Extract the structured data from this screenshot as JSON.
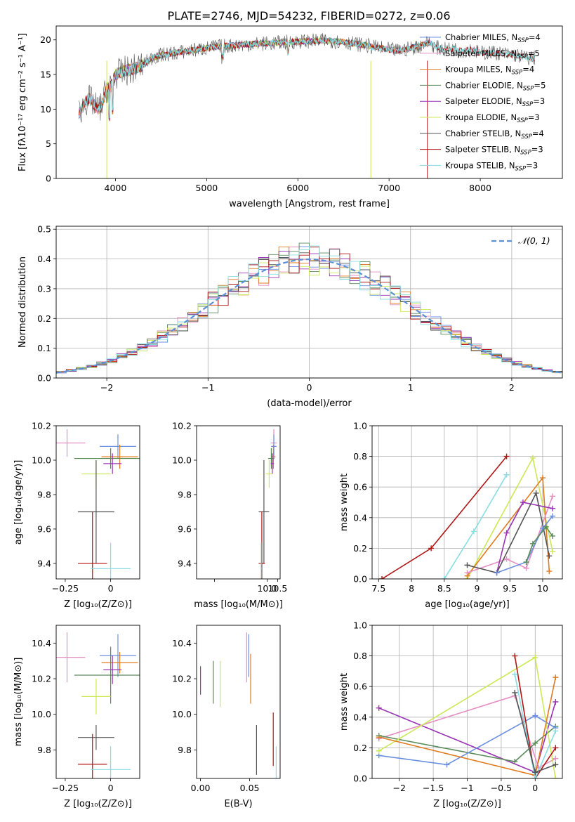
{
  "figure": {
    "title": "PLATE=2746, MJD=54232, FIBERID=0272, z=0.06"
  },
  "colors": {
    "chabrier_miles": "#6a8fe0",
    "salpeter_miles": "#e58fc2",
    "kroupa_miles": "#e07b1f",
    "chabrier_elodie": "#5a8c5a",
    "salpeter_elodie": "#9a33b5",
    "kroupa_elodie": "#cbe856",
    "chabrier_stelib": "#555555",
    "salpeter_stelib": "#b01515",
    "kroupa_stelib": "#88dde0",
    "normal": "#5b8fd6"
  },
  "chart_data": [
    {
      "id": "spectrum",
      "type": "line",
      "xlabel": "wavelength [Angstrom, rest frame]",
      "ylabel": "Flux [fλ10⁻¹⁷ erg cm⁻² s⁻¹ A⁻¹]",
      "xlim": [
        3350,
        8900
      ],
      "ylim": [
        0,
        22
      ],
      "xticks": [
        4000,
        5000,
        6000,
        7000,
        8000
      ],
      "yticks": [
        0,
        5,
        10,
        15,
        20
      ],
      "legend_position": "right",
      "spectrum_shape": {
        "x": [
          3600,
          3650,
          3700,
          3750,
          3800,
          3850,
          3900,
          3950,
          4000,
          4100,
          4200,
          4300,
          4400,
          4500,
          4700,
          4900,
          5100,
          5300,
          5500,
          5700,
          5900,
          6100,
          6300,
          6500,
          6700,
          6900,
          7100,
          7300,
          7450,
          7500,
          7600,
          7700,
          7800,
          7900,
          8000,
          8100,
          8200,
          8300,
          8400,
          8500,
          8600
        ],
        "y": [
          9.5,
          10.5,
          11.5,
          11.0,
          10.0,
          10.5,
          13.0,
          13.2,
          15.0,
          15.5,
          15.8,
          16.4,
          17.4,
          17.8,
          18.2,
          18.6,
          19.0,
          19.2,
          19.4,
          19.5,
          19.7,
          19.8,
          19.9,
          19.7,
          19.3,
          18.8,
          18.4,
          19.0,
          19.7,
          19.0,
          18.6,
          18.7,
          18.4,
          18.6,
          18.1,
          18.2,
          18.1,
          17.9,
          17.8,
          17.4,
          17.4
        ]
      },
      "series": [
        {
          "name": "Chabrier MILES",
          "nssp": "4",
          "color_key": "chabrier_miles",
          "x_range": [
            3600,
            7470
          ]
        },
        {
          "name": "Salpeter MILES",
          "nssp": "5",
          "color_key": "salpeter_miles",
          "x_range": [
            3600,
            7470
          ]
        },
        {
          "name": "Kroupa MILES",
          "nssp": "4",
          "color_key": "kroupa_miles",
          "x_range": [
            3600,
            7470
          ]
        },
        {
          "name": "Chabrier ELODIE",
          "nssp": "5",
          "color_key": "chabrier_elodie",
          "x_range": [
            3900,
            6800
          ]
        },
        {
          "name": "Salpeter ELODIE",
          "nssp": "3",
          "color_key": "salpeter_elodie",
          "x_range": [
            3900,
            6800
          ]
        },
        {
          "name": "Kroupa ELODIE",
          "nssp": "3",
          "color_key": "kroupa_elodie",
          "x_range": [
            3900,
            6800
          ]
        },
        {
          "name": "Chabrier STELIB",
          "nssp": "4",
          "color_key": "chabrier_stelib",
          "x_range": [
            3600,
            8600
          ]
        },
        {
          "name": "Salpeter STELIB",
          "nssp": "3",
          "color_key": "salpeter_stelib",
          "x_range": [
            3600,
            8600
          ]
        },
        {
          "name": "Kroupa STELIB",
          "nssp": "3",
          "color_key": "kroupa_stelib",
          "x_range": [
            3600,
            8600
          ]
        }
      ]
    },
    {
      "id": "residuals",
      "type": "histogram",
      "xlabel": "(data-model)/error",
      "ylabel": "Normed distribution",
      "xlim": [
        -2.5,
        2.5
      ],
      "ylim": [
        0,
        0.51
      ],
      "xticks": [
        -2,
        -1,
        0,
        1,
        2
      ],
      "yticks": [
        0.0,
        0.1,
        0.2,
        0.3,
        0.4,
        0.5
      ],
      "grid": true,
      "legend_position": "top-right",
      "reference_curve": {
        "label": "𝒩(0, 1)",
        "color_key": "normal",
        "style": "dashed"
      },
      "bin_width": 0.1
    },
    {
      "id": "age_vs_Z",
      "type": "errorbar",
      "xlabel": "Z [log₁₀(Z/Z⊙)]",
      "ylabel": "age  [log₁₀(age/yr)]",
      "xlim": [
        -0.3,
        0.16
      ],
      "ylim": [
        9.31,
        10.2
      ],
      "xticks": [
        -0.25,
        0.0
      ],
      "yticks": [
        9.4,
        9.6,
        9.8,
        10.0,
        10.2
      ],
      "points": [
        {
          "color_key": "salpeter_miles",
          "x": -0.24,
          "xerr": 0.1,
          "y": 10.1,
          "yerr": 0.08
        },
        {
          "color_key": "chabrier_miles",
          "x": 0.04,
          "xerr": 0.1,
          "y": 10.08,
          "yerr": 0.07
        },
        {
          "color_key": "kroupa_miles",
          "x": 0.05,
          "xerr": 0.1,
          "y": 10.02,
          "yerr": 0.07
        },
        {
          "color_key": "chabrier_elodie",
          "x": 0.0,
          "xerr": 0.2,
          "y": 10.01,
          "yerr": 0.06
        },
        {
          "color_key": "salpeter_elodie",
          "x": 0.01,
          "xerr": 0.05,
          "y": 9.98,
          "yerr": 0.06
        },
        {
          "color_key": "kroupa_elodie",
          "x": -0.08,
          "xerr": 0.08,
          "y": 9.92,
          "yerr": 0.08
        },
        {
          "color_key": "chabrier_stelib",
          "x": -0.08,
          "xerr": 0.1,
          "y": 9.7,
          "yerr": 0.3
        },
        {
          "color_key": "salpeter_stelib",
          "x": -0.1,
          "xerr": 0.08,
          "y": 9.4,
          "yerr": 0.3
        },
        {
          "color_key": "kroupa_stelib",
          "x": 0.0,
          "xerr": 0.11,
          "y": 9.37,
          "yerr": 0.15
        }
      ]
    },
    {
      "id": "age_vs_mass",
      "type": "errorbar",
      "xlabel": "mass [log₁₀(M/M⊙)]",
      "ylabel": "",
      "xlim": [
        6.65,
        10.62
      ],
      "ylim": [
        9.31,
        10.2
      ],
      "xticks": [
        7.5,
        10.0,
        10.5
      ],
      "xticklabels": [
        "",
        "10.0",
        "10.5"
      ],
      "yticks": [
        9.4,
        9.6,
        9.8,
        10.0,
        10.2
      ],
      "points": [
        {
          "color_key": "salpeter_miles",
          "x": 10.32,
          "xerr": 0.15,
          "y": 10.1,
          "yerr": 0.08
        },
        {
          "color_key": "chabrier_miles",
          "x": 10.32,
          "xerr": 0.13,
          "y": 10.08,
          "yerr": 0.07
        },
        {
          "color_key": "kroupa_miles",
          "x": 10.3,
          "xerr": 0.1,
          "y": 10.02,
          "yerr": 0.07
        },
        {
          "color_key": "chabrier_elodie",
          "x": 10.2,
          "xerr": 0.15,
          "y": 10.01,
          "yerr": 0.06
        },
        {
          "color_key": "salpeter_elodie",
          "x": 10.25,
          "xerr": 0.08,
          "y": 9.98,
          "yerr": 0.06
        },
        {
          "color_key": "kroupa_elodie",
          "x": 10.1,
          "xerr": 0.15,
          "y": 9.92,
          "yerr": 0.08
        },
        {
          "color_key": "chabrier_stelib",
          "x": 9.85,
          "xerr": 0.25,
          "y": 9.7,
          "yerr": 0.3
        },
        {
          "color_key": "salpeter_stelib",
          "x": 9.75,
          "xerr": 0.15,
          "y": 9.4,
          "yerr": 0.3
        },
        {
          "color_key": "kroupa_stelib",
          "x": 9.72,
          "xerr": 0.03,
          "y": 9.37,
          "yerr": 0.15
        }
      ]
    },
    {
      "id": "weight_vs_age",
      "type": "line",
      "xlabel": "age  [log₁₀(age/yr)]",
      "ylabel": "mass weight",
      "xlim": [
        7.4,
        10.3
      ],
      "ylim": [
        0,
        1.0
      ],
      "xticks": [
        7.5,
        8.0,
        8.5,
        9.0,
        9.5,
        10.0
      ],
      "yticks": [
        0.0,
        0.2,
        0.4,
        0.6,
        0.8,
        1.0
      ],
      "grid": true,
      "series": [
        {
          "color_key": "salpeter_stelib",
          "x": [
            7.55,
            8.3,
            9.45
          ],
          "y": [
            0.0,
            0.2,
            0.8
          ]
        },
        {
          "color_key": "kroupa_stelib",
          "x": [
            8.5,
            8.95,
            9.45
          ],
          "y": [
            0.0,
            0.31,
            0.68
          ]
        },
        {
          "color_key": "kroupa_elodie",
          "x": [
            8.85,
            9.85,
            10.15
          ],
          "y": [
            0.0,
            0.79,
            0.18
          ]
        },
        {
          "color_key": "kroupa_miles",
          "x": [
            8.85,
            10.0,
            10.1
          ],
          "y": [
            0.02,
            0.66,
            0.05
          ]
        },
        {
          "color_key": "salpeter_miles",
          "x": [
            8.85,
            9.45,
            9.75,
            10.15
          ],
          "y": [
            0.04,
            0.13,
            0.07,
            0.54
          ]
        },
        {
          "color_key": "salpeter_elodie",
          "x": [
            9.3,
            9.45,
            9.7,
            10.15
          ],
          "y": [
            0.04,
            0.3,
            0.5,
            0.46
          ]
        },
        {
          "color_key": "chabrier_stelib",
          "x": [
            8.85,
            9.3,
            9.9,
            10.1
          ],
          "y": [
            0.09,
            0.04,
            0.56,
            0.15
          ]
        },
        {
          "color_key": "chabrier_miles",
          "x": [
            9.3,
            9.75,
            10.0,
            10.15
          ],
          "y": [
            0.04,
            0.11,
            0.33,
            0.41
          ]
        },
        {
          "color_key": "chabrier_elodie",
          "x": [
            9.75,
            9.85,
            10.05,
            10.15
          ],
          "y": [
            0.11,
            0.23,
            0.34,
            0.28
          ]
        }
      ]
    },
    {
      "id": "mass_vs_Z",
      "type": "errorbar",
      "xlabel": "Z [log₁₀(Z/Z⊙)]",
      "ylabel": "mass [log₁₀(M/M⊙)]",
      "xlim": [
        -0.3,
        0.16
      ],
      "ylim": [
        9.64,
        10.5
      ],
      "xticks": [
        -0.25,
        0.0
      ],
      "yticks": [
        9.8,
        10.0,
        10.2,
        10.4
      ],
      "points": [
        {
          "color_key": "salpeter_miles",
          "x": -0.24,
          "xerr": 0.1,
          "y": 10.32,
          "yerr": 0.14
        },
        {
          "color_key": "chabrier_miles",
          "x": 0.04,
          "xerr": 0.1,
          "y": 10.33,
          "yerr": 0.12
        },
        {
          "color_key": "kroupa_miles",
          "x": 0.05,
          "xerr": 0.1,
          "y": 10.29,
          "yerr": 0.06
        },
        {
          "color_key": "chabrier_elodie",
          "x": 0.0,
          "xerr": 0.2,
          "y": 10.22,
          "yerr": 0.16
        },
        {
          "color_key": "salpeter_elodie",
          "x": 0.01,
          "xerr": 0.05,
          "y": 10.25,
          "yerr": 0.08
        },
        {
          "color_key": "kroupa_elodie",
          "x": -0.08,
          "xerr": 0.08,
          "y": 10.1,
          "yerr": 0.1
        },
        {
          "color_key": "chabrier_stelib",
          "x": -0.08,
          "xerr": 0.1,
          "y": 9.87,
          "yerr": 0.07
        },
        {
          "color_key": "salpeter_stelib",
          "x": -0.1,
          "xerr": 0.08,
          "y": 9.72,
          "yerr": 0.17
        },
        {
          "color_key": "kroupa_stelib",
          "x": 0.0,
          "xerr": 0.11,
          "y": 9.69,
          "yerr": 0.13
        }
      ]
    },
    {
      "id": "mass_vs_ebv",
      "type": "errorbar",
      "xlabel": "E(B-V)",
      "ylabel": "",
      "xlim": [
        -0.004,
        0.081
      ],
      "ylim": [
        9.64,
        10.5
      ],
      "xticks": [
        0.0,
        0.05
      ],
      "xticklabels": [
        "0.00",
        "0.05"
      ],
      "yticks": [
        9.8,
        10.0,
        10.2,
        10.4
      ],
      "points": [
        {
          "color_key": "salpeter_miles",
          "x": 0.047,
          "xerr": 0,
          "y": 10.32,
          "yerr": 0.14
        },
        {
          "color_key": "chabrier_miles",
          "x": 0.049,
          "xerr": 0,
          "y": 10.33,
          "yerr": 0.12
        },
        {
          "color_key": "kroupa_miles",
          "x": 0.051,
          "xerr": 0,
          "y": 10.2,
          "yerr": 0.14
        },
        {
          "color_key": "chabrier_elodie",
          "x": 0.013,
          "xerr": 0,
          "y": 10.18,
          "yerr": 0.12
        },
        {
          "color_key": "salpeter_elodie",
          "x": 0.0,
          "xerr": 0,
          "y": 10.19,
          "yerr": 0.08
        },
        {
          "color_key": "kroupa_elodie",
          "x": 0.02,
          "xerr": 0,
          "y": 10.17,
          "yerr": 0.13
        },
        {
          "color_key": "chabrier_stelib",
          "x": 0.057,
          "xerr": 0,
          "y": 9.8,
          "yerr": 0.14
        },
        {
          "color_key": "salpeter_stelib",
          "x": 0.074,
          "xerr": 0,
          "y": 9.86,
          "yerr": 0.15
        },
        {
          "color_key": "kroupa_stelib",
          "x": 0.077,
          "xerr": 0,
          "y": 9.73,
          "yerr": 0.09
        }
      ]
    },
    {
      "id": "weight_vs_Z",
      "type": "line",
      "xlabel": "Z [log₁₀(Z/Z⊙)]",
      "ylabel": "mass weight",
      "xlim": [
        -2.4,
        0.4
      ],
      "ylim": [
        0,
        1.0
      ],
      "xticks": [
        -2.0,
        -1.5,
        -1.0,
        -0.5,
        0.0
      ],
      "yticks": [
        0.0,
        0.2,
        0.4,
        0.6,
        0.8,
        1.0
      ],
      "grid": true,
      "series": [
        {
          "color_key": "salpeter_elodie",
          "x": [
            -2.3,
            0.0,
            0.3
          ],
          "y": [
            0.46,
            0.04,
            0.5
          ]
        },
        {
          "color_key": "salpeter_miles",
          "x": [
            -2.3,
            -0.3,
            0.05,
            0.3
          ],
          "y": [
            0.26,
            0.54,
            0.07,
            0.13
          ]
        },
        {
          "color_key": "chabrier_elodie",
          "x": [
            -2.3,
            -0.3,
            0.0,
            0.3
          ],
          "y": [
            0.28,
            0.11,
            0.23,
            0.34
          ]
        },
        {
          "color_key": "chabrier_miles",
          "x": [
            -2.3,
            -1.3,
            0.0,
            0.3
          ],
          "y": [
            0.15,
            0.09,
            0.41,
            0.33
          ]
        },
        {
          "color_key": "kroupa_elodie",
          "x": [
            -2.3,
            0.0,
            0.3
          ],
          "y": [
            0.18,
            0.79,
            0.0
          ]
        },
        {
          "color_key": "kroupa_miles",
          "x": [
            -2.3,
            0.0,
            0.3
          ],
          "y": [
            0.27,
            0.02,
            0.66
          ]
        },
        {
          "color_key": "salpeter_stelib",
          "x": [
            -0.3,
            0.0,
            0.3
          ],
          "y": [
            0.8,
            0.0,
            0.2
          ]
        },
        {
          "color_key": "kroupa_stelib",
          "x": [
            -0.3,
            0.0,
            0.3
          ],
          "y": [
            0.68,
            0.0,
            0.31
          ]
        },
        {
          "color_key": "chabrier_stelib",
          "x": [
            -0.3,
            0.0,
            0.3
          ],
          "y": [
            0.56,
            0.04,
            0.09
          ]
        }
      ]
    }
  ]
}
